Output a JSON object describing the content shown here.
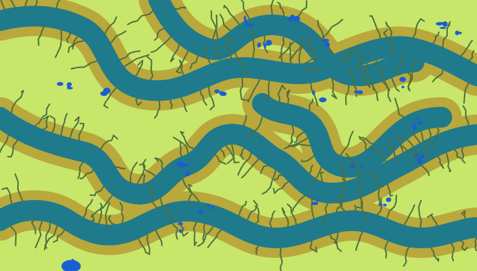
{
  "map": {
    "kind": "synthetic tidal marsh river network",
    "palette": {
      "land": "#c8e66a",
      "bank": "#b9a83c",
      "bank_edge": "#a8942f",
      "channel": "#1f7a8c",
      "creek": "#4f6f3f",
      "pond": "#1a5fd1"
    },
    "features": {
      "main_channels": 5,
      "ponds_visible": true,
      "tributary_creeks": true
    }
  }
}
